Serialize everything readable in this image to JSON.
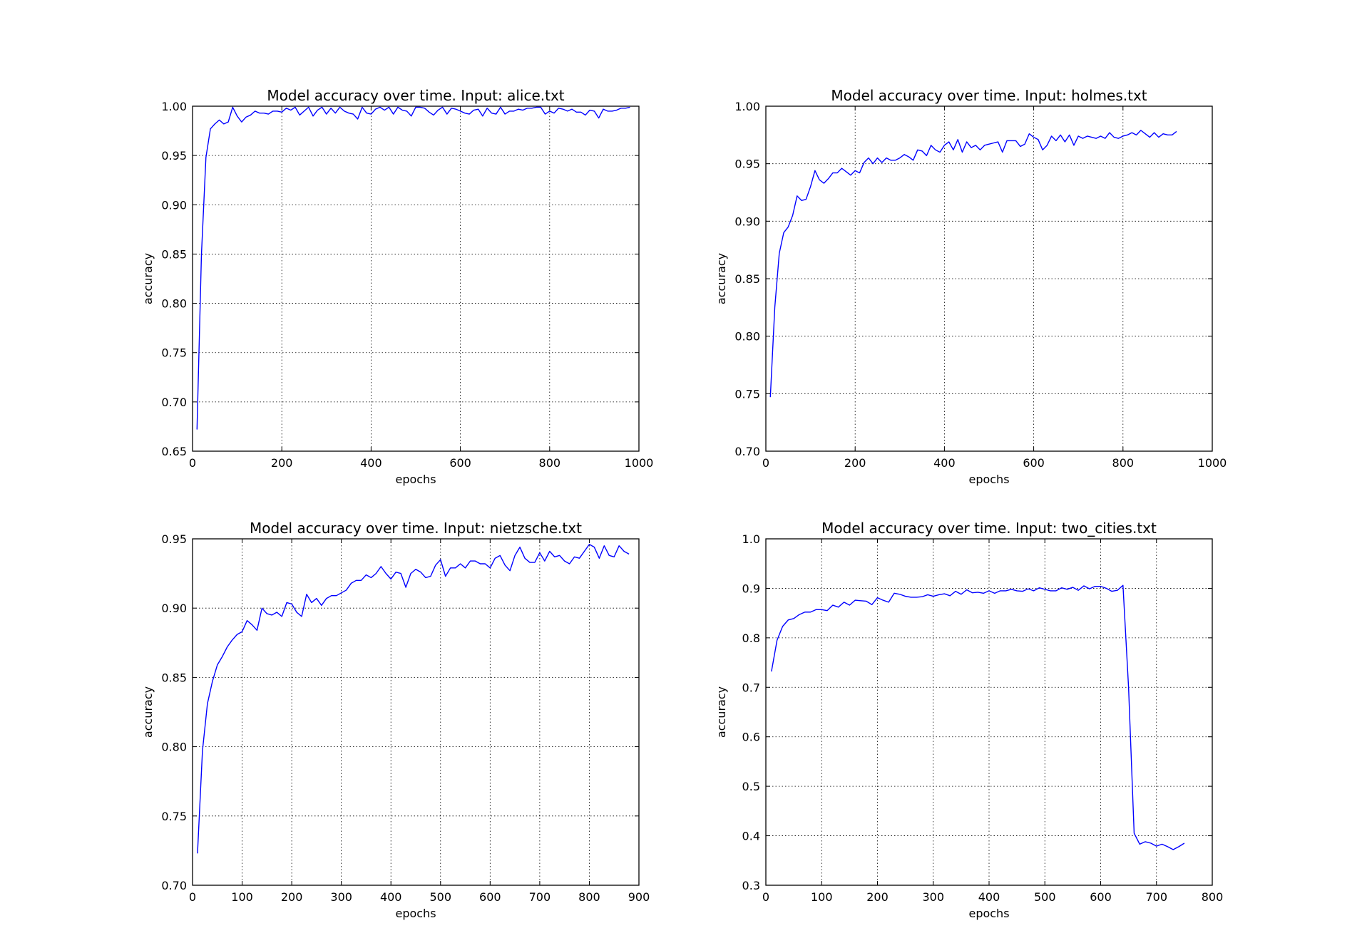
{
  "charts": [
    {
      "chart_data": {
        "type": "line",
        "title": "Model accuracy over time. Input: alice.txt",
        "xlabel": "epochs",
        "ylabel": "accuracy",
        "xlim": [
          0,
          1000
        ],
        "ylim": [
          0.65,
          1.0
        ],
        "xticks": [
          0,
          200,
          400,
          600,
          800,
          1000
        ],
        "xtick_labels": [
          "0",
          "200",
          "400",
          "600",
          "800",
          "1000"
        ],
        "yticks": [
          0.65,
          0.7,
          0.75,
          0.8,
          0.85,
          0.9,
          0.95,
          1.0
        ],
        "ytick_labels": [
          "0.65",
          "0.70",
          "0.75",
          "0.80",
          "0.85",
          "0.90",
          "0.95",
          "1.00"
        ],
        "grid": true,
        "color": "#0000ff",
        "x": [
          10,
          20,
          30,
          40,
          50,
          60,
          70,
          80,
          90,
          100,
          110,
          120,
          130,
          140,
          150,
          160,
          170,
          180,
          190,
          200,
          210,
          220,
          230,
          240,
          250,
          260,
          270,
          280,
          290,
          300,
          310,
          320,
          330,
          340,
          350,
          360,
          370,
          380,
          390,
          400,
          410,
          420,
          430,
          440,
          450,
          460,
          470,
          480,
          490,
          500,
          510,
          520,
          530,
          540,
          550,
          560,
          570,
          580,
          590,
          600,
          610,
          620,
          630,
          640,
          650,
          660,
          670,
          680,
          690,
          700,
          710,
          720,
          730,
          740,
          750,
          760,
          770,
          780,
          790,
          800,
          810,
          820,
          830,
          840,
          850,
          860,
          870,
          880,
          890,
          900,
          910,
          920,
          930,
          940,
          950,
          960,
          970,
          980
        ],
        "y": [
          0.672,
          0.85,
          0.948,
          0.977,
          0.982,
          0.986,
          0.982,
          0.984,
          0.999,
          0.99,
          0.984,
          0.989,
          0.991,
          0.995,
          0.993,
          0.993,
          0.992,
          0.995,
          0.995,
          0.994,
          0.998,
          0.996,
          0.999,
          0.991,
          0.995,
          0.999,
          0.99,
          0.996,
          0.999,
          0.992,
          0.998,
          0.993,
          0.999,
          0.995,
          0.993,
          0.992,
          0.987,
          0.999,
          0.993,
          0.992,
          0.997,
          0.999,
          0.996,
          0.999,
          0.992,
          0.999,
          0.996,
          0.995,
          0.99,
          0.999,
          0.999,
          0.998,
          0.994,
          0.991,
          0.996,
          0.999,
          0.992,
          0.998,
          0.997,
          0.995,
          0.993,
          0.992,
          0.996,
          0.997,
          0.99,
          0.998,
          0.993,
          0.992,
          0.999,
          0.992,
          0.995,
          0.995,
          0.997,
          0.996,
          0.998,
          0.998,
          0.999,
          0.999,
          0.992,
          0.995,
          0.993,
          0.998,
          0.997,
          0.995,
          0.997,
          0.994,
          0.994,
          0.991,
          0.996,
          0.995,
          0.988,
          0.997,
          0.995,
          0.995,
          0.996,
          0.998,
          0.998,
          0.999
        ]
      }
    },
    {
      "chart_data": {
        "type": "line",
        "title": "Model accuracy over time. Input: holmes.txt",
        "xlabel": "epochs",
        "ylabel": "accuracy",
        "xlim": [
          0,
          1000
        ],
        "ylim": [
          0.7,
          1.0
        ],
        "xticks": [
          0,
          200,
          400,
          600,
          800,
          1000
        ],
        "xtick_labels": [
          "0",
          "200",
          "400",
          "600",
          "800",
          "1000"
        ],
        "yticks": [
          0.7,
          0.75,
          0.8,
          0.85,
          0.9,
          0.95,
          1.0
        ],
        "ytick_labels": [
          "0.70",
          "0.75",
          "0.80",
          "0.85",
          "0.90",
          "0.95",
          "1.00"
        ],
        "grid": true,
        "color": "#0000ff",
        "x": [
          10,
          20,
          30,
          40,
          50,
          60,
          70,
          80,
          90,
          100,
          110,
          120,
          130,
          140,
          150,
          160,
          170,
          180,
          190,
          200,
          210,
          220,
          230,
          240,
          250,
          260,
          270,
          280,
          290,
          300,
          310,
          320,
          330,
          340,
          350,
          360,
          370,
          380,
          390,
          400,
          410,
          420,
          430,
          440,
          450,
          460,
          470,
          480,
          490,
          500,
          510,
          520,
          530,
          540,
          550,
          560,
          570,
          580,
          590,
          600,
          610,
          620,
          630,
          640,
          650,
          660,
          670,
          680,
          690,
          700,
          710,
          720,
          730,
          740,
          750,
          760,
          770,
          780,
          790,
          800,
          810,
          820,
          830,
          840,
          850,
          860,
          870,
          880,
          890,
          900,
          910,
          920
        ],
        "y": [
          0.747,
          0.825,
          0.872,
          0.89,
          0.895,
          0.905,
          0.922,
          0.918,
          0.919,
          0.93,
          0.944,
          0.936,
          0.933,
          0.937,
          0.942,
          0.942,
          0.946,
          0.943,
          0.94,
          0.944,
          0.942,
          0.951,
          0.955,
          0.95,
          0.955,
          0.951,
          0.955,
          0.953,
          0.953,
          0.955,
          0.958,
          0.956,
          0.953,
          0.962,
          0.961,
          0.957,
          0.966,
          0.962,
          0.96,
          0.966,
          0.969,
          0.962,
          0.971,
          0.96,
          0.969,
          0.964,
          0.966,
          0.962,
          0.966,
          0.967,
          0.968,
          0.969,
          0.96,
          0.97,
          0.97,
          0.97,
          0.965,
          0.967,
          0.976,
          0.973,
          0.971,
          0.962,
          0.966,
          0.974,
          0.97,
          0.975,
          0.969,
          0.975,
          0.966,
          0.974,
          0.972,
          0.974,
          0.973,
          0.972,
          0.974,
          0.972,
          0.977,
          0.973,
          0.972,
          0.974,
          0.975,
          0.977,
          0.975,
          0.979,
          0.976,
          0.973,
          0.977,
          0.973,
          0.976,
          0.975,
          0.975,
          0.978
        ]
      }
    },
    {
      "chart_data": {
        "type": "line",
        "title": "Model accuracy over time. Input: nietzsche.txt",
        "xlabel": "epochs",
        "ylabel": "accuracy",
        "xlim": [
          0,
          900
        ],
        "ylim": [
          0.7,
          0.95
        ],
        "xticks": [
          0,
          100,
          200,
          300,
          400,
          500,
          600,
          700,
          800,
          900
        ],
        "xtick_labels": [
          "0",
          "100",
          "200",
          "300",
          "400",
          "500",
          "600",
          "700",
          "800",
          "900"
        ],
        "yticks": [
          0.7,
          0.75,
          0.8,
          0.85,
          0.9,
          0.95
        ],
        "ytick_labels": [
          "0.70",
          "0.75",
          "0.80",
          "0.85",
          "0.90",
          "0.95"
        ],
        "grid": true,
        "color": "#0000ff",
        "x": [
          10,
          20,
          30,
          40,
          50,
          60,
          70,
          80,
          90,
          100,
          110,
          120,
          130,
          140,
          150,
          160,
          170,
          180,
          190,
          200,
          210,
          220,
          230,
          240,
          250,
          260,
          270,
          280,
          290,
          300,
          310,
          320,
          330,
          340,
          350,
          360,
          370,
          380,
          390,
          400,
          410,
          420,
          430,
          440,
          450,
          460,
          470,
          480,
          490,
          500,
          510,
          520,
          530,
          540,
          550,
          560,
          570,
          580,
          590,
          600,
          610,
          620,
          630,
          640,
          650,
          660,
          670,
          680,
          690,
          700,
          710,
          720,
          730,
          740,
          750,
          760,
          770,
          780,
          790,
          800,
          810,
          820,
          830,
          840,
          850,
          860,
          870,
          880
        ],
        "y": [
          0.723,
          0.797,
          0.831,
          0.847,
          0.859,
          0.865,
          0.872,
          0.877,
          0.881,
          0.883,
          0.891,
          0.888,
          0.884,
          0.9,
          0.896,
          0.895,
          0.897,
          0.894,
          0.904,
          0.903,
          0.897,
          0.894,
          0.91,
          0.904,
          0.907,
          0.902,
          0.907,
          0.909,
          0.909,
          0.911,
          0.913,
          0.918,
          0.92,
          0.92,
          0.924,
          0.922,
          0.925,
          0.93,
          0.925,
          0.921,
          0.926,
          0.925,
          0.915,
          0.925,
          0.928,
          0.926,
          0.922,
          0.923,
          0.931,
          0.935,
          0.923,
          0.929,
          0.929,
          0.932,
          0.929,
          0.934,
          0.934,
          0.932,
          0.932,
          0.929,
          0.936,
          0.938,
          0.931,
          0.927,
          0.938,
          0.944,
          0.936,
          0.933,
          0.933,
          0.94,
          0.934,
          0.941,
          0.937,
          0.938,
          0.934,
          0.932,
          0.937,
          0.936,
          0.941,
          0.946,
          0.944,
          0.936,
          0.945,
          0.938,
          0.937,
          0.945,
          0.941,
          0.939
        ]
      }
    },
    {
      "chart_data": {
        "type": "line",
        "title": "Model accuracy over time. Input: two_cities.txt",
        "xlabel": "epochs",
        "ylabel": "accuracy",
        "xlim": [
          0,
          800
        ],
        "ylim": [
          0.3,
          1.0
        ],
        "xticks": [
          0,
          100,
          200,
          300,
          400,
          500,
          600,
          700,
          800
        ],
        "xtick_labels": [
          "0",
          "100",
          "200",
          "300",
          "400",
          "500",
          "600",
          "700",
          "800"
        ],
        "yticks": [
          0.3,
          0.4,
          0.5,
          0.6,
          0.7,
          0.8,
          0.9,
          1.0
        ],
        "ytick_labels": [
          "0.3",
          "0.4",
          "0.5",
          "0.6",
          "0.7",
          "0.8",
          "0.9",
          "1.0"
        ],
        "grid": true,
        "color": "#0000ff",
        "x": [
          10,
          20,
          30,
          40,
          50,
          60,
          70,
          80,
          90,
          100,
          110,
          120,
          130,
          140,
          150,
          160,
          170,
          180,
          190,
          200,
          210,
          220,
          230,
          240,
          250,
          260,
          270,
          280,
          290,
          300,
          310,
          320,
          330,
          340,
          350,
          360,
          370,
          380,
          390,
          400,
          410,
          420,
          430,
          440,
          450,
          460,
          470,
          480,
          490,
          500,
          510,
          520,
          530,
          540,
          550,
          560,
          570,
          580,
          590,
          600,
          610,
          620,
          630,
          640,
          650,
          660,
          670,
          680,
          690,
          700,
          710,
          720,
          730,
          740,
          750
        ],
        "y": [
          0.732,
          0.795,
          0.823,
          0.836,
          0.839,
          0.847,
          0.852,
          0.852,
          0.857,
          0.857,
          0.855,
          0.866,
          0.862,
          0.872,
          0.866,
          0.876,
          0.875,
          0.874,
          0.867,
          0.881,
          0.876,
          0.872,
          0.89,
          0.888,
          0.884,
          0.882,
          0.882,
          0.883,
          0.887,
          0.884,
          0.887,
          0.889,
          0.885,
          0.894,
          0.888,
          0.897,
          0.891,
          0.892,
          0.89,
          0.895,
          0.89,
          0.895,
          0.895,
          0.898,
          0.895,
          0.894,
          0.899,
          0.895,
          0.901,
          0.898,
          0.895,
          0.895,
          0.901,
          0.898,
          0.902,
          0.896,
          0.905,
          0.899,
          0.904,
          0.904,
          0.9,
          0.894,
          0.896,
          0.906,
          0.7,
          0.405,
          0.383,
          0.388,
          0.385,
          0.379,
          0.383,
          0.378,
          0.372,
          0.378,
          0.385
        ]
      }
    }
  ]
}
